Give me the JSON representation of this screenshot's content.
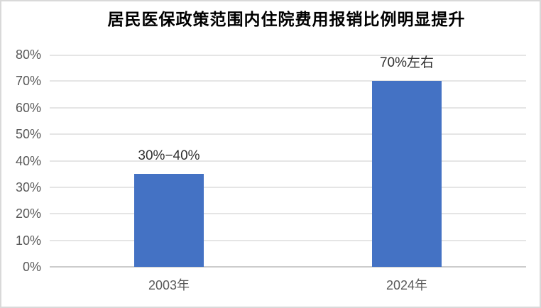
{
  "frame": {
    "background": "#ffffff",
    "border_color": "#d9d9d9"
  },
  "chart_data": {
    "type": "bar",
    "title": "居民医保政策范围内住院费用报销比例明显提升",
    "categories": [
      "2003年",
      "2024年"
    ],
    "values": [
      35,
      70
    ],
    "bar_labels": [
      "30%−40%",
      "70%左右"
    ],
    "xlabel": "",
    "ylabel": "",
    "ylim": [
      0,
      80
    ],
    "ytick_step": 10,
    "ytick_labels": [
      "0%",
      "10%",
      "20%",
      "30%",
      "40%",
      "50%",
      "60%",
      "70%",
      "80%"
    ],
    "grid": true,
    "legend_position": "none",
    "bar_color": "#4472c4",
    "gridline_color": "#e5e5e5",
    "axis_line_color": "#cccccc",
    "tick_label_color": "#595959",
    "bar_label_color": "#303030",
    "title_color": "#000000"
  }
}
